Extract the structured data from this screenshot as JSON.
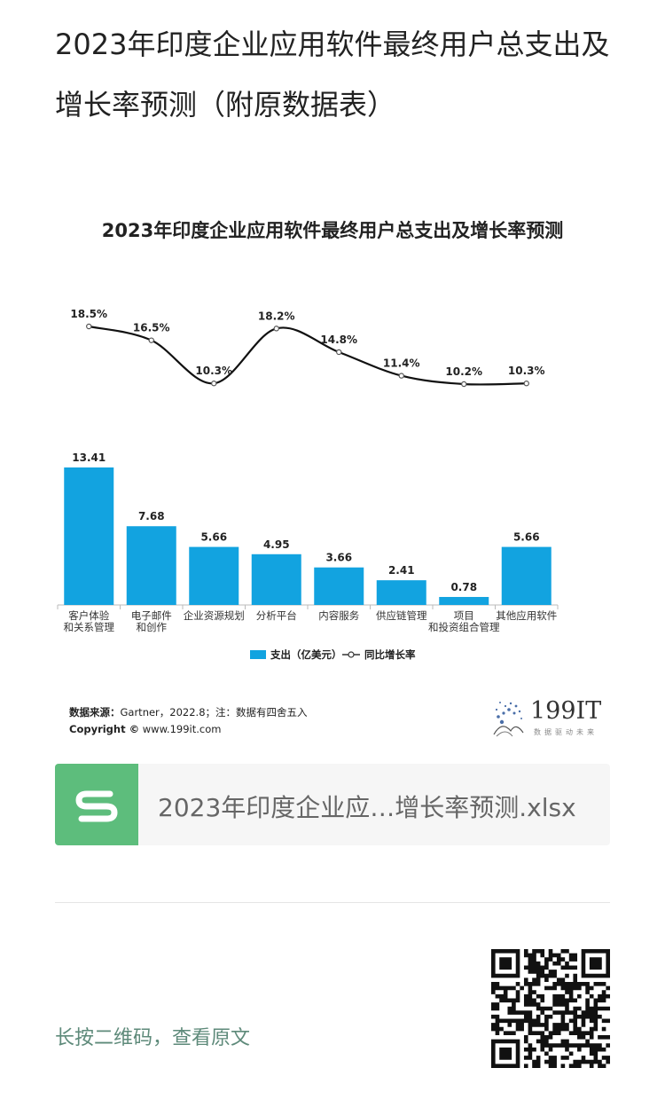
{
  "article": {
    "title": "2023年印度企业应用软件最终用户总支出及增长率预测（附原数据表）"
  },
  "chart_data": {
    "type": "bar",
    "title": "2023年印度企业应用软件最终用户总支出及增长率预测",
    "categories": [
      [
        "客户体验",
        "和关系管理"
      ],
      [
        "电子邮件",
        "和创作"
      ],
      [
        "企业资源规划"
      ],
      [
        "分析平台"
      ],
      [
        "内容服务"
      ],
      [
        "供应链管理"
      ],
      [
        "项目",
        "和投资组合管理"
      ],
      [
        "其他应用软件"
      ]
    ],
    "series": [
      {
        "name": "支出（亿美元）",
        "type": "bar",
        "color": "#12a3e0",
        "values": [
          13.41,
          7.68,
          5.66,
          4.95,
          3.66,
          2.41,
          0.78,
          5.66
        ],
        "labels": [
          "13.41",
          "7.68",
          "5.66",
          "4.95",
          "3.66",
          "2.41",
          "0.78",
          "5.66"
        ]
      },
      {
        "name": "同比增长率",
        "type": "line",
        "color": "#111111",
        "values": [
          18.5,
          16.5,
          10.3,
          18.2,
          14.8,
          11.4,
          10.2,
          10.3
        ],
        "labels": [
          "18.5%",
          "16.5%",
          "10.3%",
          "18.2%",
          "14.8%",
          "11.4%",
          "10.2%",
          "10.3%"
        ]
      }
    ],
    "legend": {
      "position": "bottom-center",
      "bar_label": "支出（亿美元）",
      "line_label": "同比增长率"
    },
    "grid": false
  },
  "source": {
    "label": "数据来源：",
    "text": "Gartner，2022.8；注：数据有四舍五入",
    "copyright_label": "Copyright ©",
    "copyright_text": " www.199it.com"
  },
  "logo": {
    "brand": "199IT",
    "tagline": "数据驱动未来"
  },
  "attachment": {
    "file_name": "2023年印度企业应…增长率预测.xlsx",
    "icon": "spreadsheet-s-icon",
    "icon_color": "#5dbd7c"
  },
  "footer": {
    "long_press_text": "长按二维码，查看原文",
    "qr_icon": "qr-code-icon"
  }
}
